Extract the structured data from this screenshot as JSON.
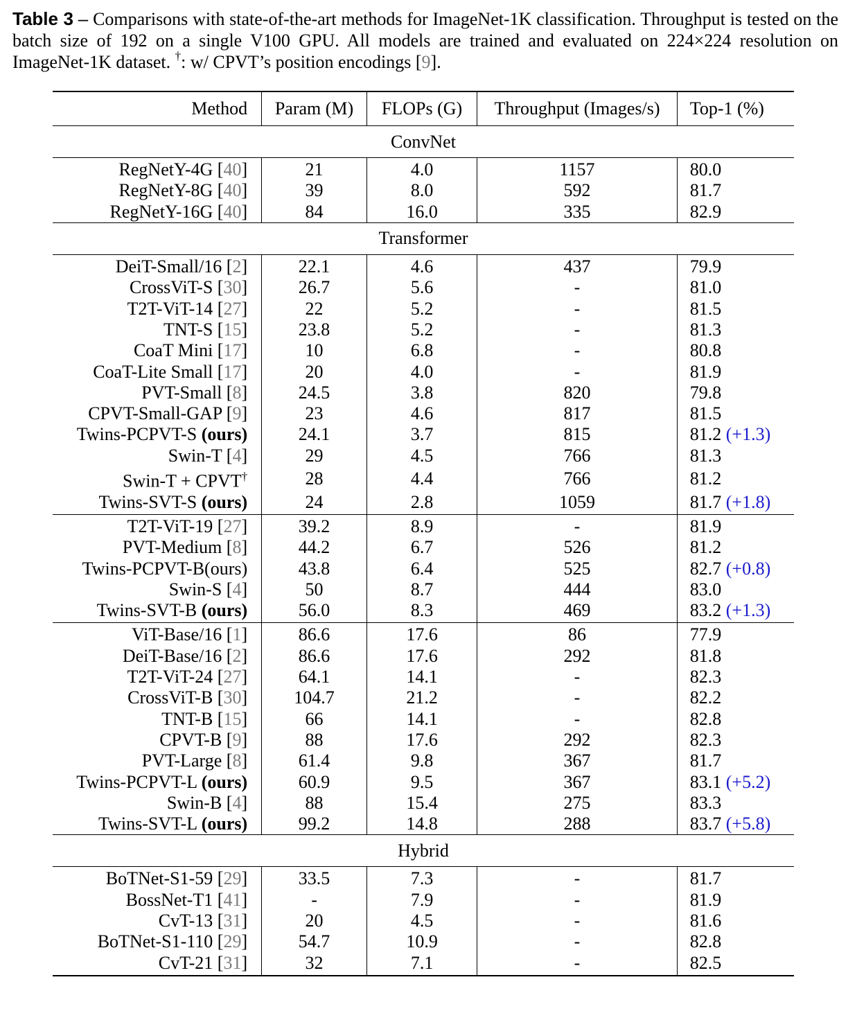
{
  "caption": {
    "label": "Table 3",
    "dash": "–",
    "text_part1": "Comparisons with state-of-the-art methods for ImageNet-1K classification. Throughput is tested on the batch size of 192 on a single V100 GPU. All models are trained and evaluated on 224×224 resolution on ImageNet-1K dataset.",
    "dagger": "†",
    "text_part2": ": w/ CPVT’s position encodings [",
    "cite": "9",
    "text_part3": "]."
  },
  "table": {
    "headers": [
      "Method",
      "Param (M)",
      "FLOPs (G)",
      "Throughput (Images/s)",
      "Top-1 (%)"
    ],
    "groups": [
      {
        "section": "ConvNet",
        "rows": [
          {
            "name": "RegNetY-4G",
            "cite": "40",
            "param": "21",
            "flops": "4.0",
            "throughput": "1157",
            "top1": "80.0"
          },
          {
            "name": "RegNetY-8G",
            "cite": "40",
            "param": "39",
            "flops": "8.0",
            "throughput": "592",
            "top1": "81.7"
          },
          {
            "name": "RegNetY-16G",
            "cite": "40",
            "param": "84",
            "flops": "16.0",
            "throughput": "335",
            "top1": "82.9"
          }
        ]
      },
      {
        "section": "Transformer",
        "rows": [
          {
            "name": "DeiT-Small/16",
            "cite": "2",
            "param": "22.1",
            "flops": "4.6",
            "throughput": "437",
            "top1": "79.9"
          },
          {
            "name": "CrossViT-S",
            "cite": "30",
            "param": "26.7",
            "flops": "5.6",
            "throughput": "-",
            "top1": "81.0"
          },
          {
            "name": "T2T-ViT-14",
            "cite": "27",
            "param": "22",
            "flops": "5.2",
            "throughput": "-",
            "top1": "81.5"
          },
          {
            "name": "TNT-S",
            "cite": "15",
            "param": "23.8",
            "flops": "5.2",
            "throughput": "-",
            "top1": "81.3"
          },
          {
            "name": "CoaT Mini",
            "cite": "17",
            "param": "10",
            "flops": "6.8",
            "throughput": "-",
            "top1": "80.8"
          },
          {
            "name": "CoaT-Lite Small",
            "cite": "17",
            "param": "20",
            "flops": "4.0",
            "throughput": "-",
            "top1": "81.9"
          },
          {
            "name": "PVT-Small",
            "cite": "8",
            "param": "24.5",
            "flops": "3.8",
            "throughput": "820",
            "top1": "79.8"
          },
          {
            "name": "CPVT-Small-GAP",
            "cite": "9",
            "param": "23",
            "flops": "4.6",
            "throughput": "817",
            "top1": "81.5"
          },
          {
            "name": "Twins-PCPVT-S",
            "ours": "(ours)",
            "param": "24.1",
            "flops": "3.7",
            "throughput": "815",
            "top1": "81.2",
            "gain": "(+1.3)"
          },
          {
            "name": "Swin-T",
            "cite": "4",
            "param": "29",
            "flops": "4.5",
            "throughput": "766",
            "top1": "81.3"
          },
          {
            "name": "Swin-T + CPVT",
            "dagger": "†",
            "param": "28",
            "flops": "4.4",
            "throughput": "766",
            "top1": "81.2"
          },
          {
            "name": "Twins-SVT-S",
            "ours": "(ours)",
            "param": "24",
            "flops": "2.8",
            "throughput": "1059",
            "top1": "81.7",
            "gain": "(+1.8)"
          }
        ]
      },
      {
        "section": "",
        "rows": [
          {
            "name": "T2T-ViT-19",
            "cite": "27",
            "param": "39.2",
            "flops": "8.9",
            "throughput": "-",
            "top1": "81.9"
          },
          {
            "name": "PVT-Medium",
            "cite": "8",
            "param": "44.2",
            "flops": "6.7",
            "throughput": "526",
            "top1": "81.2"
          },
          {
            "name": "Twins-PCPVT-B(ours)",
            "param": "43.8",
            "flops": "6.4",
            "throughput": "525",
            "top1": "82.7",
            "gain": "(+0.8)"
          },
          {
            "name": "Swin-S",
            "cite": "4",
            "param": "50",
            "flops": "8.7",
            "throughput": "444",
            "top1": "83.0"
          },
          {
            "name": "Twins-SVT-B",
            "ours": "(ours)",
            "param": "56.0",
            "flops": "8.3",
            "throughput": "469",
            "top1": "83.2",
            "gain": "(+1.3)"
          }
        ]
      },
      {
        "section": "",
        "rows": [
          {
            "name": "ViT-Base/16",
            "cite": "1",
            "param": "86.6",
            "flops": "17.6",
            "throughput": "86",
            "top1": "77.9"
          },
          {
            "name": "DeiT-Base/16",
            "cite": "2",
            "param": "86.6",
            "flops": "17.6",
            "throughput": "292",
            "top1": "81.8"
          },
          {
            "name": "T2T-ViT-24",
            "cite": "27",
            "param": "64.1",
            "flops": "14.1",
            "throughput": "-",
            "top1": "82.3"
          },
          {
            "name": "CrossViT-B",
            "cite": "30",
            "param": "104.7",
            "flops": "21.2",
            "throughput": "-",
            "top1": "82.2"
          },
          {
            "name": "TNT-B",
            "cite": "15",
            "param": "66",
            "flops": "14.1",
            "throughput": "-",
            "top1": "82.8"
          },
          {
            "name": "CPVT-B",
            "cite": "9",
            "param": "88",
            "flops": "17.6",
            "throughput": "292",
            "top1": "82.3"
          },
          {
            "name": "PVT-Large",
            "cite": "8",
            "param": "61.4",
            "flops": "9.8",
            "throughput": "367",
            "top1": "81.7"
          },
          {
            "name": "Twins-PCPVT-L",
            "ours": "(ours)",
            "param": "60.9",
            "flops": "9.5",
            "throughput": "367",
            "top1": "83.1",
            "gain": "(+5.2)"
          },
          {
            "name": "Swin-B",
            "cite": "4",
            "param": "88",
            "flops": "15.4",
            "throughput": "275",
            "top1": "83.3"
          },
          {
            "name": "Twins-SVT-L",
            "ours": "(ours)",
            "param": "99.2",
            "flops": "14.8",
            "throughput": "288",
            "top1": "83.7",
            "gain": "(+5.8)"
          }
        ]
      },
      {
        "section": "Hybrid",
        "rows": [
          {
            "name": "BoTNet-S1-59",
            "cite": "29",
            "param": "33.5",
            "flops": "7.3",
            "throughput": "-",
            "top1": "81.7"
          },
          {
            "name": "BossNet-T1",
            "cite": "41",
            "param": "-",
            "flops": "7.9",
            "throughput": "-",
            "top1": "81.9"
          },
          {
            "name": "CvT-13",
            "cite": "31",
            "param": "20",
            "flops": "4.5",
            "throughput": "-",
            "top1": "81.6"
          },
          {
            "name": "BoTNet-S1-110",
            "cite": "29",
            "param": "54.7",
            "flops": "10.9",
            "throughput": "-",
            "top1": "82.8"
          },
          {
            "name": "CvT-21",
            "cite": "31",
            "param": "32",
            "flops": "7.1",
            "throughput": "-",
            "top1": "82.5"
          }
        ]
      }
    ]
  }
}
